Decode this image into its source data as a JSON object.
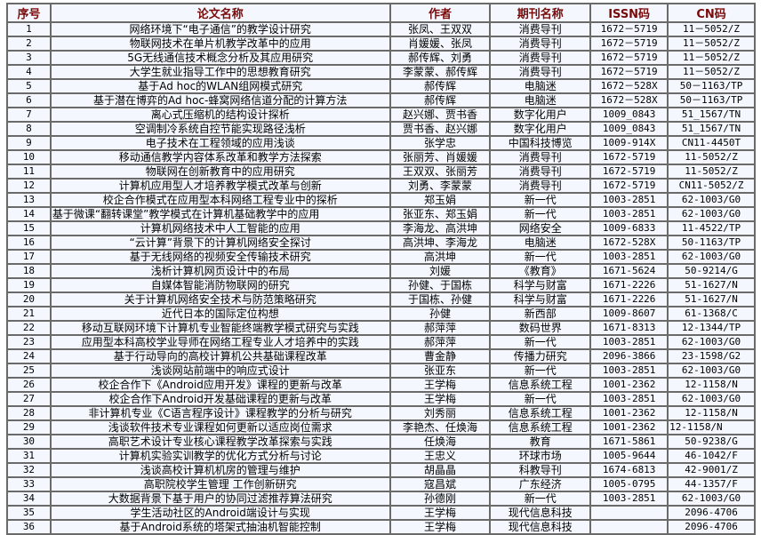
{
  "table": {
    "headers": [
      "序号",
      "论文名称",
      "作者",
      "期刊名称",
      "ISSN码",
      "CN码"
    ],
    "rows": [
      [
        "1",
        "网络环境下“电子通信”的教学设计研究",
        "张凤、王双双",
        "消费导刊",
        "1672－5719",
        "11－5052/Z"
      ],
      [
        "2",
        "物联网技术在单片机教学改革中的应用",
        "肖媛媛、张凤",
        "消费导刊",
        "1672－5719",
        "11－5052/Z"
      ],
      [
        "3",
        "5G无线通信技术概念分析及其应用研究",
        "郝传辉、刘勇",
        "消费导刊",
        "1672－5719",
        "11－5052/Z"
      ],
      [
        "4",
        "大学生就业指导工作中的思想教育研究",
        "李蒙蒙、郝传辉",
        "消费导刊",
        "1672－5719",
        "11－5052/Z"
      ],
      [
        "5",
        "基于Ad hoc的WLAN组网模式研究",
        "郝传辉",
        "电脑迷",
        "1672－528X",
        "50－1163/TP"
      ],
      [
        "6",
        "基于潜在博弈的Ad hoc-蜂窝网络信道分配的计算方法",
        "郝传辉",
        "电脑迷",
        "1672－528X",
        "50－1163/TP"
      ],
      [
        "7",
        "离心式压缩机的结构设计探析",
        "赵兴娜、贾书香",
        "数字化用户",
        "1009_0843",
        "51_1567/TN"
      ],
      [
        "8",
        "空调制冷系统自控节能实现路径浅析",
        "贾书香、赵兴娜",
        "数字化用户",
        "1009_0843",
        "51_1567/TN"
      ],
      [
        "9",
        "电子技术在工程领域的应用浅谈",
        "张学忠",
        "中国科技博览",
        "1009-914X",
        "CN11-4450T"
      ],
      [
        "10",
        "移动通信教学内容体系改革和教学方法探索",
        "张丽芳、肖媛媛",
        "消费导刊",
        "1672-5719",
        "11-5052/Z"
      ],
      [
        "11",
        "物联网在创新教育中的应用研究",
        "王双双、张丽芳",
        "消费导刊",
        "1672-5719",
        "11-5052/Z"
      ],
      [
        "12",
        "计算机应用型人才培养教学模式改革与创新",
        "刘勇、李蒙蒙",
        "消费导刊",
        "1672-5719",
        "CN11-5052/Z"
      ],
      [
        "13",
        "校企合作模式在应用型本科网络工程专业中的探析",
        "郑玉娟",
        "新一代",
        "1003-2851",
        "62-1003/G0"
      ],
      [
        "14",
        "基于微课“翻转课堂”教学模式在计算机基础教学中的应用",
        "张亚东、郑玉娟",
        "新一代",
        "1003-2851",
        "62-1003/G0"
      ],
      [
        "15",
        "计算机网络技术中人工智能的应用",
        "李海龙、高洪坤",
        "网络安全",
        "1009-6833",
        "11-4522/TP"
      ],
      [
        "16",
        "“云计算”背景下的计算机网络安全探讨",
        "高洪坤、李海龙",
        "电脑迷",
        "1672-528X",
        "50-1163/TP"
      ],
      [
        "17",
        "基于无线网络的视频安全传输技术研究",
        "高洪坤",
        "新一代",
        "1003-2851",
        "62-1003/G0"
      ],
      [
        "18",
        "浅析计算机网页设计中的布局",
        "刘媛",
        "《教育》",
        "1671-5624",
        "50-9214/G"
      ],
      [
        "19",
        "自媒体智能消防物联网的研究",
        "孙健、于国栋",
        "科学与财富",
        "1671-2226",
        "51-1627/N"
      ],
      [
        "20",
        "关于计算机网络安全技术与防范策略研究",
        "于国栋、孙健",
        "科学与财富",
        "1671-2226",
        "51-1627/N"
      ],
      [
        "21",
        "近代日本的国际定位构想",
        "孙健",
        "新西部",
        "1009-8607",
        "61-1368/C"
      ],
      [
        "22",
        "移动互联网环境下计算机专业智能终端教学模式研究与实践",
        "郝萍萍",
        "数码世界",
        "1671-8313",
        "12-1344/TP"
      ],
      [
        "23",
        "应用型本科高校学业导师在网络工程专业人才培养中的实践",
        "郝萍萍",
        "新一代",
        "1003-2851",
        "62-1003/G0"
      ],
      [
        "24",
        "基于行动导向的高校计算机公共基础课程改革",
        "曹金静",
        "传播力研究",
        "2096-3866",
        "23-1598/G2"
      ],
      [
        "25",
        "浅谈网站前端中的响应式设计",
        "张亚东",
        "新一代",
        "1003-2851",
        "62-1003/G0"
      ],
      [
        "26",
        "校企合作下《Android应用开发》课程的更新与改革",
        "王学梅",
        "信息系统工程",
        "1001-2362",
        "12-1158/N"
      ],
      [
        "27",
        "校企合作下Android开发基础课程的更新与改革",
        "王学梅",
        "新一代",
        "1003-2851",
        "62-1003/G0"
      ],
      [
        "28",
        "非计算机专业《C语言程序设计》课程教学的分析与研究",
        "刘秀丽",
        "信息系统工程",
        "1001-2362",
        "12-1158/N"
      ],
      [
        "29",
        "浅谈软件技术专业课程如何更新以适应岗位需求",
        "李艳杰、任焕海",
        "信息系统工程",
        "1001-2362",
        "12-1158/N"
      ],
      [
        "30",
        "高职艺术设计专业核心课程教学改革探索与实践",
        "任焕海",
        "教育",
        "1671-5861",
        "50-9238/G"
      ],
      [
        "31",
        "计算机实验实训教学的优化方式分析与讨论",
        "王忠义",
        "环球市场",
        "1005-9644",
        "46-1042/F"
      ],
      [
        "32",
        "浅谈高校计算机机房的管理与维护",
        "胡晶晶",
        "科教导刊",
        "1674-6813",
        "42-9001/Z"
      ],
      [
        "33",
        "高职院校学生管理 工作创新研究",
        "寇昌斌",
        "广东经济",
        "1005-0795",
        "44-1357/F"
      ],
      [
        "34",
        "大数据背景下基于用户的协同过滤推荐算法研究",
        "孙德刚",
        "新一代",
        "1003-2851",
        "62-1003/G0"
      ],
      [
        "35",
        "学生活动社区的Android端设计与实现",
        "王学梅",
        "现代信息科技",
        "",
        "2096-4706"
      ],
      [
        "36",
        "基于Android系统的塔架式抽油机智能控制",
        "王学梅",
        "现代信息科技",
        "",
        "2096-4706"
      ]
    ]
  },
  "colors": {
    "header_text": "#7a0a0a",
    "table_bg": "#f4f8fe",
    "border": "#6a6a6a"
  }
}
